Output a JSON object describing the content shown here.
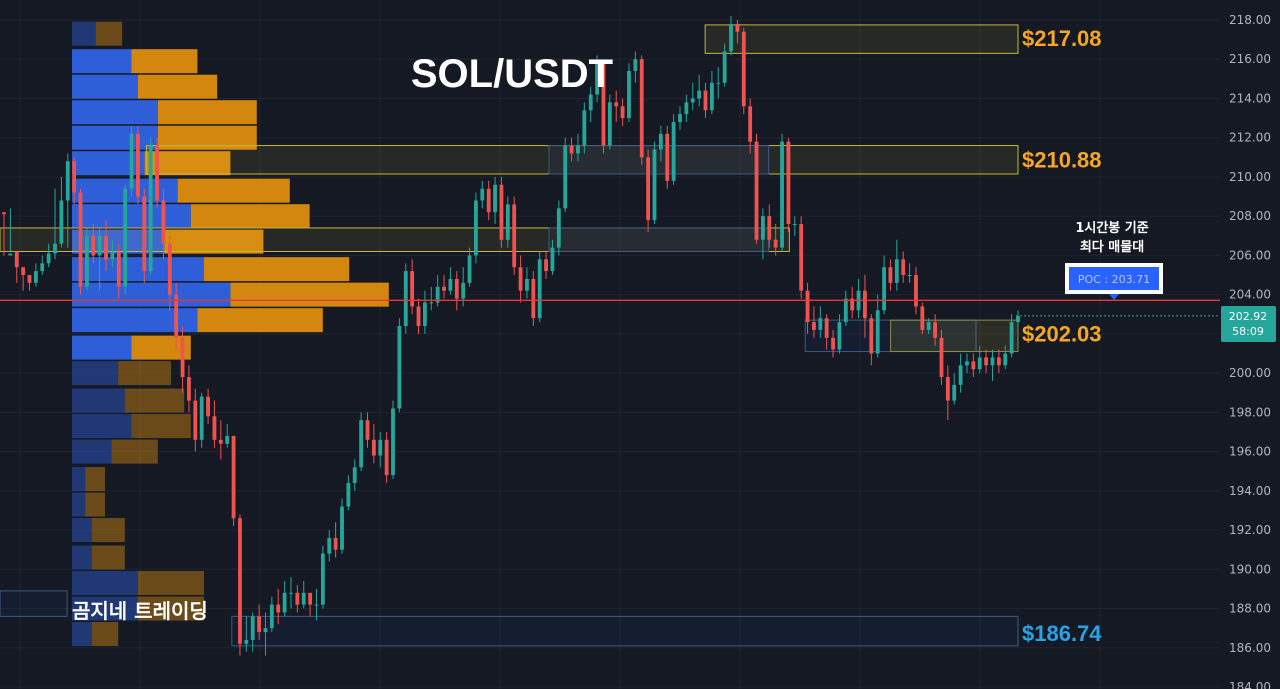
{
  "chart_data": {
    "type": "candlestick",
    "title": "SOL/USDT",
    "watermark": "곰지네 트레이딩",
    "y_axis": {
      "ticks": [
        "218.00",
        "216.00",
        "214.00",
        "212.00",
        "210.00",
        "208.00",
        "206.00",
        "204.00",
        "202.00",
        "200.00",
        "198.00",
        "196.00",
        "194.00",
        "192.00",
        "190.00",
        "188.00",
        "186.00",
        "184.00"
      ],
      "ylim": [
        184,
        218.5
      ],
      "position": "right"
    },
    "current_price": {
      "price_label": "202.92",
      "countdown_label": "58:09",
      "value": 202.92,
      "color": "#26a69a"
    },
    "poc": {
      "value": 203.71,
      "label": "POC : 203.71",
      "color": "#e53935",
      "annotation_line1": "1시간봉 기준",
      "annotation_line2": "최다 매물대"
    },
    "levels": [
      {
        "label": "$217.08",
        "value": 217.08,
        "color": "#f5a623"
      },
      {
        "label": "$210.88",
        "value": 210.88,
        "color": "#f5a623"
      },
      {
        "label": "$202.03",
        "value": 202.03,
        "color": "#f5a623"
      },
      {
        "label": "$186.74",
        "value": 186.74,
        "color": "#29a3e8"
      }
    ],
    "zones": [
      {
        "type": "resistance",
        "top": 217.75,
        "bottom": 216.3,
        "start": 0.578
      },
      {
        "type": "resistance",
        "top": 211.6,
        "bottom": 210.15,
        "start": 0.12
      },
      {
        "type": "resistance",
        "top": 207.4,
        "bottom": 206.2,
        "start": 0.0,
        "end": 0.647
      },
      {
        "type": "support",
        "top": 211.6,
        "bottom": 210.15,
        "start": 0.45,
        "end": 0.63
      },
      {
        "type": "support",
        "top": 207.4,
        "bottom": 206.2,
        "start": 0.45,
        "end": 0.63
      },
      {
        "type": "support",
        "top": 202.7,
        "bottom": 201.1,
        "start": 0.66,
        "end": 0.8
      },
      {
        "type": "support",
        "top": 187.6,
        "bottom": 186.1,
        "start": 0.19
      },
      {
        "type": "support",
        "top": 188.9,
        "bottom": 187.6,
        "start": 0.0,
        "end": 0.055
      },
      {
        "type": "accent",
        "top": 202.7,
        "bottom": 201.1,
        "start": 0.73
      }
    ],
    "volume_profile": {
      "rows": [
        {
          "price": 217.3,
          "buy": 18,
          "sell": 20,
          "value_area": false
        },
        {
          "price": 215.9,
          "buy": 45,
          "sell": 50,
          "value_area": true
        },
        {
          "price": 214.6,
          "buy": 50,
          "sell": 60,
          "value_area": true
        },
        {
          "price": 213.3,
          "buy": 65,
          "sell": 75,
          "value_area": true
        },
        {
          "price": 212.0,
          "buy": 65,
          "sell": 75,
          "value_area": true
        },
        {
          "price": 210.7,
          "buy": 55,
          "sell": 65,
          "value_area": true
        },
        {
          "price": 209.3,
          "buy": 80,
          "sell": 85,
          "value_area": true
        },
        {
          "price": 208.0,
          "buy": 90,
          "sell": 90,
          "value_area": true
        },
        {
          "price": 206.7,
          "buy": 70,
          "sell": 75,
          "value_area": true
        },
        {
          "price": 205.3,
          "buy": 100,
          "sell": 110,
          "value_area": true
        },
        {
          "price": 204.0,
          "buy": 120,
          "sell": 120,
          "value_area": true
        },
        {
          "price": 202.7,
          "buy": 95,
          "sell": 95,
          "value_area": true
        },
        {
          "price": 201.3,
          "buy": 45,
          "sell": 45,
          "value_area": true
        },
        {
          "price": 200.0,
          "buy": 35,
          "sell": 40,
          "value_area": false
        },
        {
          "price": 198.6,
          "buy": 40,
          "sell": 45,
          "value_area": false
        },
        {
          "price": 197.3,
          "buy": 45,
          "sell": 45,
          "value_area": false
        },
        {
          "price": 196.0,
          "buy": 30,
          "sell": 35,
          "value_area": false
        },
        {
          "price": 194.6,
          "buy": 10,
          "sell": 15,
          "value_area": false
        },
        {
          "price": 193.3,
          "buy": 10,
          "sell": 15,
          "value_area": false
        },
        {
          "price": 192.0,
          "buy": 15,
          "sell": 25,
          "value_area": false
        },
        {
          "price": 190.6,
          "buy": 15,
          "sell": 25,
          "value_area": false
        },
        {
          "price": 189.3,
          "buy": 50,
          "sell": 50,
          "value_area": false
        },
        {
          "price": 188.0,
          "buy": 50,
          "sell": 50,
          "value_area": false
        },
        {
          "price": 186.7,
          "buy": 15,
          "sell": 20,
          "value_area": false
        }
      ]
    },
    "candles": [
      [
        208.2,
        208.1,
        208.2,
        206.0
      ],
      [
        206.0,
        206.1,
        208.4,
        206.2
      ],
      [
        206.2,
        205.4,
        205.6,
        204.6
      ],
      [
        205.4,
        205.0,
        205.2,
        204.2
      ],
      [
        205.0,
        204.6,
        205.0,
        204.2
      ],
      [
        204.6,
        205.2,
        205.6,
        204.4
      ],
      [
        205.2,
        205.6,
        206.0,
        205.0
      ],
      [
        205.6,
        206.1,
        206.6,
        205.4
      ],
      [
        206.1,
        206.6,
        209.4,
        205.8
      ],
      [
        206.6,
        208.8,
        210.0,
        206.4
      ],
      [
        208.8,
        210.8,
        211.2,
        206.4
      ],
      [
        210.8,
        209.2,
        211.0,
        208.6
      ],
      [
        209.2,
        204.4,
        209.4,
        204.0
      ],
      [
        204.4,
        207.0,
        207.4,
        204.2
      ],
      [
        207.0,
        206.0,
        207.6,
        205.6
      ],
      [
        206.0,
        207.0,
        207.4,
        204.2
      ],
      [
        207.0,
        205.8,
        207.8,
        205.2
      ],
      [
        205.8,
        206.2,
        206.8,
        205.4
      ],
      [
        206.2,
        204.4,
        206.6,
        203.8
      ],
      [
        204.4,
        209.4,
        209.6,
        204.0
      ],
      [
        209.4,
        212.2,
        212.6,
        209.0
      ],
      [
        212.2,
        209.0,
        212.6,
        208.6
      ],
      [
        209.0,
        205.2,
        209.4,
        204.6
      ],
      [
        205.2,
        211.6,
        212.0,
        205.0
      ],
      [
        211.6,
        208.8,
        212.0,
        208.4
      ],
      [
        208.8,
        206.6,
        209.4,
        205.8
      ],
      [
        206.6,
        204.0,
        207.0,
        203.2
      ],
      [
        204.0,
        201.8,
        204.6,
        201.2
      ],
      [
        201.8,
        199.8,
        202.4,
        199.0
      ],
      [
        199.8,
        198.6,
        200.4,
        198.0
      ],
      [
        198.6,
        196.6,
        199.2,
        196.0
      ],
      [
        196.6,
        198.8,
        199.0,
        196.2
      ],
      [
        198.8,
        197.8,
        199.2,
        197.4
      ],
      [
        197.8,
        196.6,
        198.6,
        196.2
      ],
      [
        196.6,
        196.4,
        197.6,
        195.6
      ],
      [
        196.4,
        196.8,
        197.4,
        196.2
      ],
      [
        196.8,
        192.6,
        196.8,
        192.2
      ],
      [
        192.6,
        186.2,
        192.8,
        185.6
      ],
      [
        186.2,
        186.4,
        187.6,
        185.8
      ],
      [
        186.4,
        187.6,
        187.8,
        185.8
      ],
      [
        187.6,
        186.8,
        188.2,
        186.4
      ],
      [
        186.8,
        187.0,
        187.8,
        185.6
      ],
      [
        187.0,
        188.2,
        188.6,
        186.8
      ],
      [
        188.2,
        187.8,
        189.0,
        187.2
      ],
      [
        187.8,
        188.8,
        189.4,
        187.6
      ],
      [
        188.8,
        188.8,
        189.6,
        188.0
      ],
      [
        188.8,
        188.2,
        189.2,
        187.8
      ],
      [
        188.2,
        188.8,
        189.4,
        188.0
      ],
      [
        188.8,
        188.2,
        188.8,
        187.6
      ],
      [
        188.2,
        188.2,
        189.0,
        187.4
      ],
      [
        188.2,
        190.8,
        191.2,
        188.0
      ],
      [
        190.8,
        191.6,
        192.0,
        190.4
      ],
      [
        191.6,
        191.0,
        192.4,
        190.6
      ],
      [
        191.0,
        193.2,
        193.6,
        190.8
      ],
      [
        193.2,
        194.4,
        194.8,
        193.0
      ],
      [
        194.4,
        195.2,
        195.6,
        194.0
      ],
      [
        195.2,
        197.6,
        198.0,
        195.0
      ],
      [
        197.6,
        196.6,
        198.0,
        196.2
      ],
      [
        196.6,
        195.8,
        197.4,
        195.4
      ],
      [
        195.8,
        196.6,
        197.0,
        195.2
      ],
      [
        196.6,
        194.8,
        197.0,
        194.4
      ],
      [
        194.8,
        198.2,
        198.6,
        194.6
      ],
      [
        198.2,
        202.4,
        202.8,
        198.0
      ],
      [
        202.4,
        205.2,
        205.6,
        202.0
      ],
      [
        205.2,
        203.4,
        205.8,
        203.0
      ],
      [
        203.4,
        202.4,
        203.8,
        202.0
      ],
      [
        202.4,
        203.6,
        204.2,
        202.0
      ],
      [
        203.6,
        203.6,
        204.4,
        203.2
      ],
      [
        203.6,
        204.4,
        205.0,
        203.4
      ],
      [
        204.4,
        204.2,
        205.0,
        203.8
      ],
      [
        204.2,
        204.8,
        205.4,
        204.0
      ],
      [
        204.8,
        203.8,
        205.2,
        203.2
      ],
      [
        203.8,
        204.6,
        205.4,
        203.4
      ],
      [
        204.6,
        206.0,
        206.4,
        204.4
      ],
      [
        206.0,
        208.8,
        209.2,
        205.6
      ],
      [
        208.8,
        209.4,
        209.8,
        208.4
      ],
      [
        209.4,
        208.2,
        209.8,
        207.8
      ],
      [
        208.2,
        209.6,
        210.0,
        207.6
      ],
      [
        209.6,
        206.8,
        210.0,
        206.4
      ],
      [
        206.8,
        208.6,
        209.0,
        206.4
      ],
      [
        208.6,
        205.4,
        209.0,
        205.0
      ],
      [
        205.4,
        204.2,
        206.0,
        203.6
      ],
      [
        204.2,
        204.8,
        205.4,
        203.8
      ],
      [
        204.8,
        202.8,
        205.2,
        202.4
      ],
      [
        202.8,
        205.8,
        206.2,
        202.6
      ],
      [
        205.8,
        205.2,
        206.2,
        204.8
      ],
      [
        205.2,
        206.4,
        206.8,
        205.0
      ],
      [
        206.4,
        208.4,
        208.8,
        206.0
      ],
      [
        208.4,
        211.6,
        212.0,
        208.2
      ],
      [
        211.6,
        211.2,
        212.0,
        210.8
      ],
      [
        211.2,
        211.6,
        212.2,
        210.8
      ],
      [
        211.6,
        213.4,
        213.8,
        211.2
      ],
      [
        213.4,
        214.2,
        214.6,
        212.8
      ],
      [
        214.2,
        215.8,
        216.2,
        213.8
      ],
      [
        215.8,
        211.6,
        216.0,
        211.2
      ],
      [
        211.6,
        213.8,
        214.2,
        211.4
      ],
      [
        213.8,
        213.6,
        214.4,
        212.8
      ],
      [
        213.6,
        213.0,
        214.0,
        212.6
      ],
      [
        213.0,
        215.4,
        215.8,
        212.8
      ],
      [
        215.4,
        216.0,
        216.4,
        214.8
      ],
      [
        216.0,
        211.0,
        216.2,
        210.6
      ],
      [
        211.0,
        207.8,
        211.4,
        207.2
      ],
      [
        207.8,
        211.4,
        211.8,
        207.6
      ],
      [
        211.4,
        212.2,
        212.6,
        210.8
      ],
      [
        212.2,
        209.8,
        212.6,
        209.4
      ],
      [
        209.8,
        212.8,
        213.2,
        209.6
      ],
      [
        212.8,
        213.2,
        213.6,
        212.4
      ],
      [
        213.2,
        213.8,
        214.2,
        212.8
      ],
      [
        213.8,
        214.0,
        214.8,
        213.4
      ],
      [
        214.0,
        214.4,
        215.2,
        213.6
      ],
      [
        214.4,
        213.4,
        214.8,
        213.0
      ],
      [
        213.4,
        214.8,
        215.4,
        213.2
      ],
      [
        214.8,
        214.8,
        215.6,
        214.0
      ],
      [
        214.8,
        216.4,
        216.8,
        214.6
      ],
      [
        216.4,
        217.8,
        218.2,
        216.2
      ],
      [
        217.8,
        217.4,
        218.0,
        216.8
      ],
      [
        217.4,
        213.6,
        217.6,
        213.2
      ],
      [
        213.6,
        211.8,
        214.0,
        211.2
      ],
      [
        211.8,
        206.8,
        212.2,
        206.6
      ],
      [
        206.8,
        208.0,
        208.4,
        205.8
      ],
      [
        208.0,
        206.8,
        208.6,
        206.4
      ],
      [
        206.8,
        206.4,
        207.6,
        206.0
      ],
      [
        206.4,
        211.8,
        212.2,
        206.2
      ],
      [
        211.8,
        207.6,
        212.0,
        207.2
      ],
      [
        207.6,
        207.6,
        208.0,
        207.0
      ],
      [
        207.6,
        204.2,
        208.0,
        203.8
      ],
      [
        204.2,
        202.6,
        204.6,
        202.0
      ],
      [
        202.6,
        202.2,
        203.4,
        201.8
      ],
      [
        202.2,
        202.8,
        203.4,
        201.8
      ],
      [
        202.8,
        201.8,
        203.0,
        201.2
      ],
      [
        201.8,
        201.2,
        202.2,
        200.8
      ],
      [
        201.2,
        202.6,
        203.0,
        201.0
      ],
      [
        202.6,
        203.8,
        204.2,
        202.4
      ],
      [
        203.8,
        203.2,
        204.4,
        202.8
      ],
      [
        203.2,
        204.2,
        204.8,
        202.8
      ],
      [
        204.2,
        202.8,
        205.0,
        201.8
      ],
      [
        202.8,
        201.0,
        203.0,
        200.4
      ],
      [
        201.0,
        203.2,
        204.0,
        200.8
      ],
      [
        203.2,
        205.4,
        206.0,
        203.0
      ],
      [
        205.4,
        204.6,
        205.8,
        204.2
      ],
      [
        204.6,
        205.8,
        206.8,
        204.2
      ],
      [
        205.8,
        205.0,
        206.2,
        204.6
      ],
      [
        205.0,
        205.0,
        205.6,
        204.6
      ],
      [
        205.0,
        203.4,
        205.4,
        203.0
      ],
      [
        203.4,
        202.2,
        203.6,
        202.0
      ],
      [
        202.2,
        202.6,
        202.8,
        202.0
      ],
      [
        202.6,
        201.8,
        203.0,
        201.4
      ],
      [
        201.8,
        199.8,
        202.2,
        199.4
      ],
      [
        199.8,
        198.6,
        200.4,
        197.6
      ],
      [
        198.6,
        199.4,
        200.0,
        198.4
      ],
      [
        199.4,
        200.4,
        201.0,
        199.0
      ],
      [
        200.4,
        200.6,
        201.0,
        200.0
      ],
      [
        200.6,
        200.2,
        201.0,
        199.8
      ],
      [
        200.2,
        200.8,
        201.4,
        200.0
      ],
      [
        200.8,
        200.4,
        201.2,
        200.0
      ],
      [
        200.4,
        200.8,
        201.2,
        199.6
      ],
      [
        200.8,
        200.4,
        201.2,
        200.0
      ],
      [
        200.4,
        201.0,
        201.4,
        200.2
      ],
      [
        201.0,
        202.6,
        203.0,
        200.8
      ],
      [
        202.6,
        202.9,
        203.2,
        202.4
      ]
    ],
    "colors": {
      "up": "#26a69a",
      "down": "#ef5350",
      "background": "#151924",
      "grid": "#1f2430"
    }
  }
}
